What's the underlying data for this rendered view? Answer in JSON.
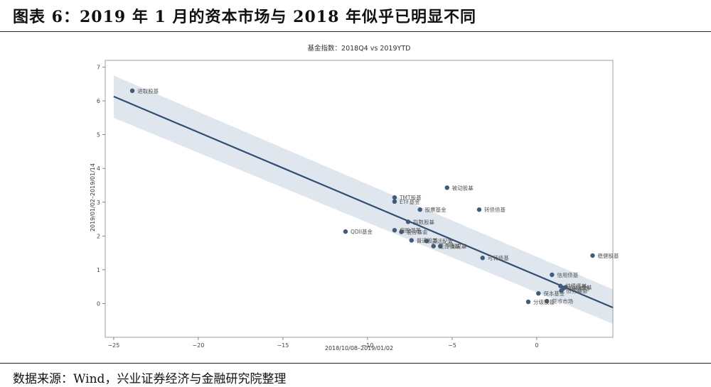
{
  "figure": {
    "title": "图表 6：2019 年 1 月的资本市场与 2018 年似乎已明显不同",
    "source": "数据来源：Wind，兴业证券经济与金融研究院整理"
  },
  "colors": {
    "point": "#3f5d7a",
    "line": "#2e4f73",
    "band": "#c9d6e3",
    "label": "#555555"
  },
  "chart_data": {
    "type": "scatter",
    "title": "基金指数：2018Q4 vs 2019YTD",
    "xlabel": "2018/10/08–2019/01/02",
    "ylabel": "2019/01/02–2019/01/14",
    "xlim": [
      -25.5,
      4.5
    ],
    "ylim": [
      -1,
      7.2
    ],
    "xticks": [
      -25,
      -20,
      -15,
      -10,
      -5,
      0
    ],
    "yticks": [
      0,
      1,
      2,
      3,
      4,
      5,
      6,
      7
    ],
    "grid": false,
    "points": [
      {
        "name": "进取股基",
        "x": -23.9,
        "y": 6.3
      },
      {
        "name": "被动股基",
        "x": -5.3,
        "y": 3.43
      },
      {
        "name": "TMT股基",
        "x": -8.4,
        "y": 3.14
      },
      {
        "name": "ETF基金",
        "x": -8.4,
        "y": 3.02
      },
      {
        "name": "股票基金",
        "x": -6.9,
        "y": 2.78
      },
      {
        "name": "转债债基",
        "x": -3.4,
        "y": 2.78
      },
      {
        "name": "指数股基",
        "x": -7.6,
        "y": 2.42
      },
      {
        "name": "QDII基金",
        "x": -11.3,
        "y": 2.13
      },
      {
        "name": "偏股混基",
        "x": -8.4,
        "y": 2.17
      },
      {
        "name": "混合基金",
        "x": -8.0,
        "y": 2.12
      },
      {
        "name": "普通股基",
        "x": -7.4,
        "y": 1.87
      },
      {
        "name": "灵活配置",
        "x": -6.5,
        "y": 1.85
      },
      {
        "name": "混合债基",
        "x": -6.1,
        "y": 1.7
      },
      {
        "name": "平衡混基",
        "x": -5.7,
        "y": 1.7
      },
      {
        "name": "可转债基",
        "x": -3.2,
        "y": 1.35
      },
      {
        "name": "稳健股基",
        "x": 3.3,
        "y": 1.42
      },
      {
        "name": "信用债基",
        "x": 0.9,
        "y": 0.85
      },
      {
        "name": "纯债债基",
        "x": 1.4,
        "y": 0.52
      },
      {
        "name": "短债债基",
        "x": 1.7,
        "y": 0.48
      },
      {
        "name": "中长期债",
        "x": 1.55,
        "y": 0.44
      },
      {
        "name": "债券基金",
        "x": 1.45,
        "y": 0.38
      },
      {
        "name": "保本基金",
        "x": 0.1,
        "y": 0.3
      },
      {
        "name": "货币市场",
        "x": 0.6,
        "y": 0.07
      },
      {
        "name": "分级股基",
        "x": -0.5,
        "y": 0.05
      }
    ],
    "regression": {
      "x": [
        -25,
        4.5
      ],
      "y": [
        6.13,
        -0.12
      ],
      "ci_upper": [
        6.75,
        0.42
      ],
      "ci_lower": [
        5.5,
        -0.6
      ]
    }
  }
}
